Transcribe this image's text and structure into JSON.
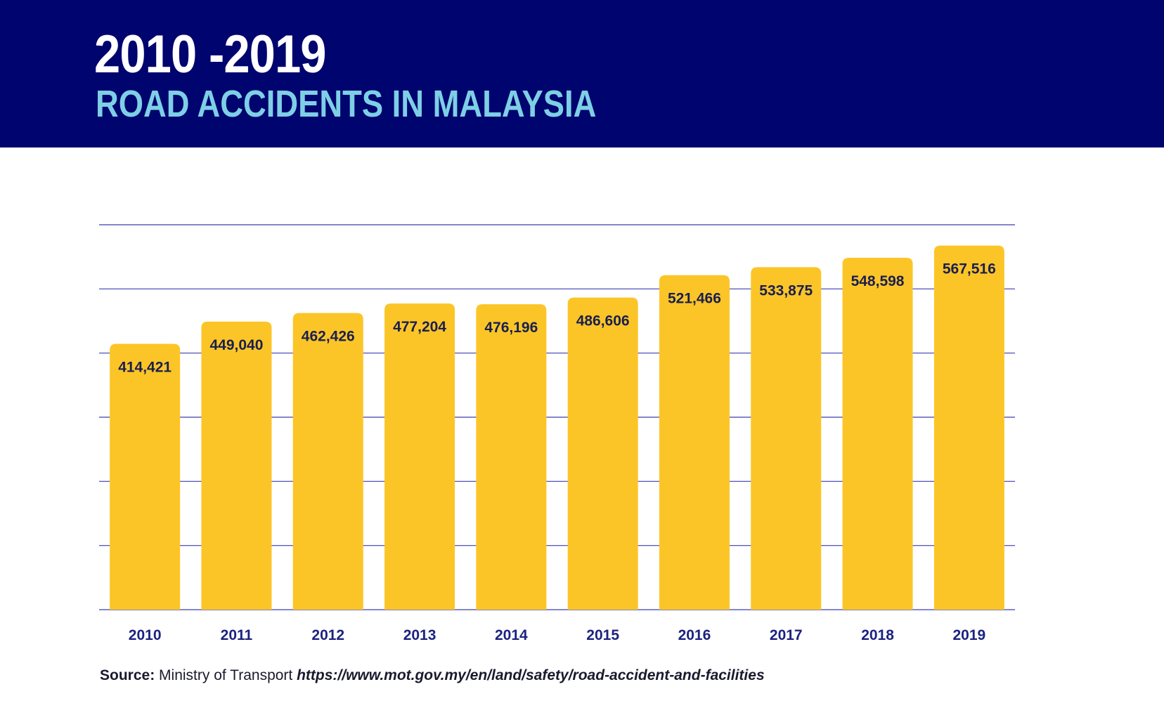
{
  "header": {
    "years": "2010 -2019",
    "title": "ROAD ACCIDENTS IN MALAYSIA"
  },
  "colors": {
    "banner": "#00046e",
    "title_accent": "#7ecfe6",
    "bar": "#fcc527",
    "grid": "#3a3fb0",
    "label_text": "#1a1f4f",
    "tick_text": "#1c2280"
  },
  "chart_data": {
    "type": "bar",
    "title": "ROAD ACCIDENTS IN MALAYSIA",
    "categories": [
      "2010",
      "2011",
      "2012",
      "2013",
      "2014",
      "2015",
      "2016",
      "2017",
      "2018",
      "2019"
    ],
    "values": [
      414421,
      449040,
      462426,
      477204,
      476196,
      486606,
      521466,
      533875,
      548598,
      567516
    ],
    "data_labels": [
      "414,421",
      "449,040",
      "462,426",
      "477,204",
      "476,196",
      "486,606",
      "521,466",
      "533,875",
      "548,598",
      "567,516"
    ],
    "xlabel": "",
    "ylabel": "",
    "ylim": [
      0,
      600000
    ],
    "grid": true,
    "legend": "none"
  },
  "source": {
    "label": "Source:",
    "text": "Ministry of Transport",
    "url": "https://www.mot.gov.my/en/land/safety/road-accident-and-facilities"
  }
}
